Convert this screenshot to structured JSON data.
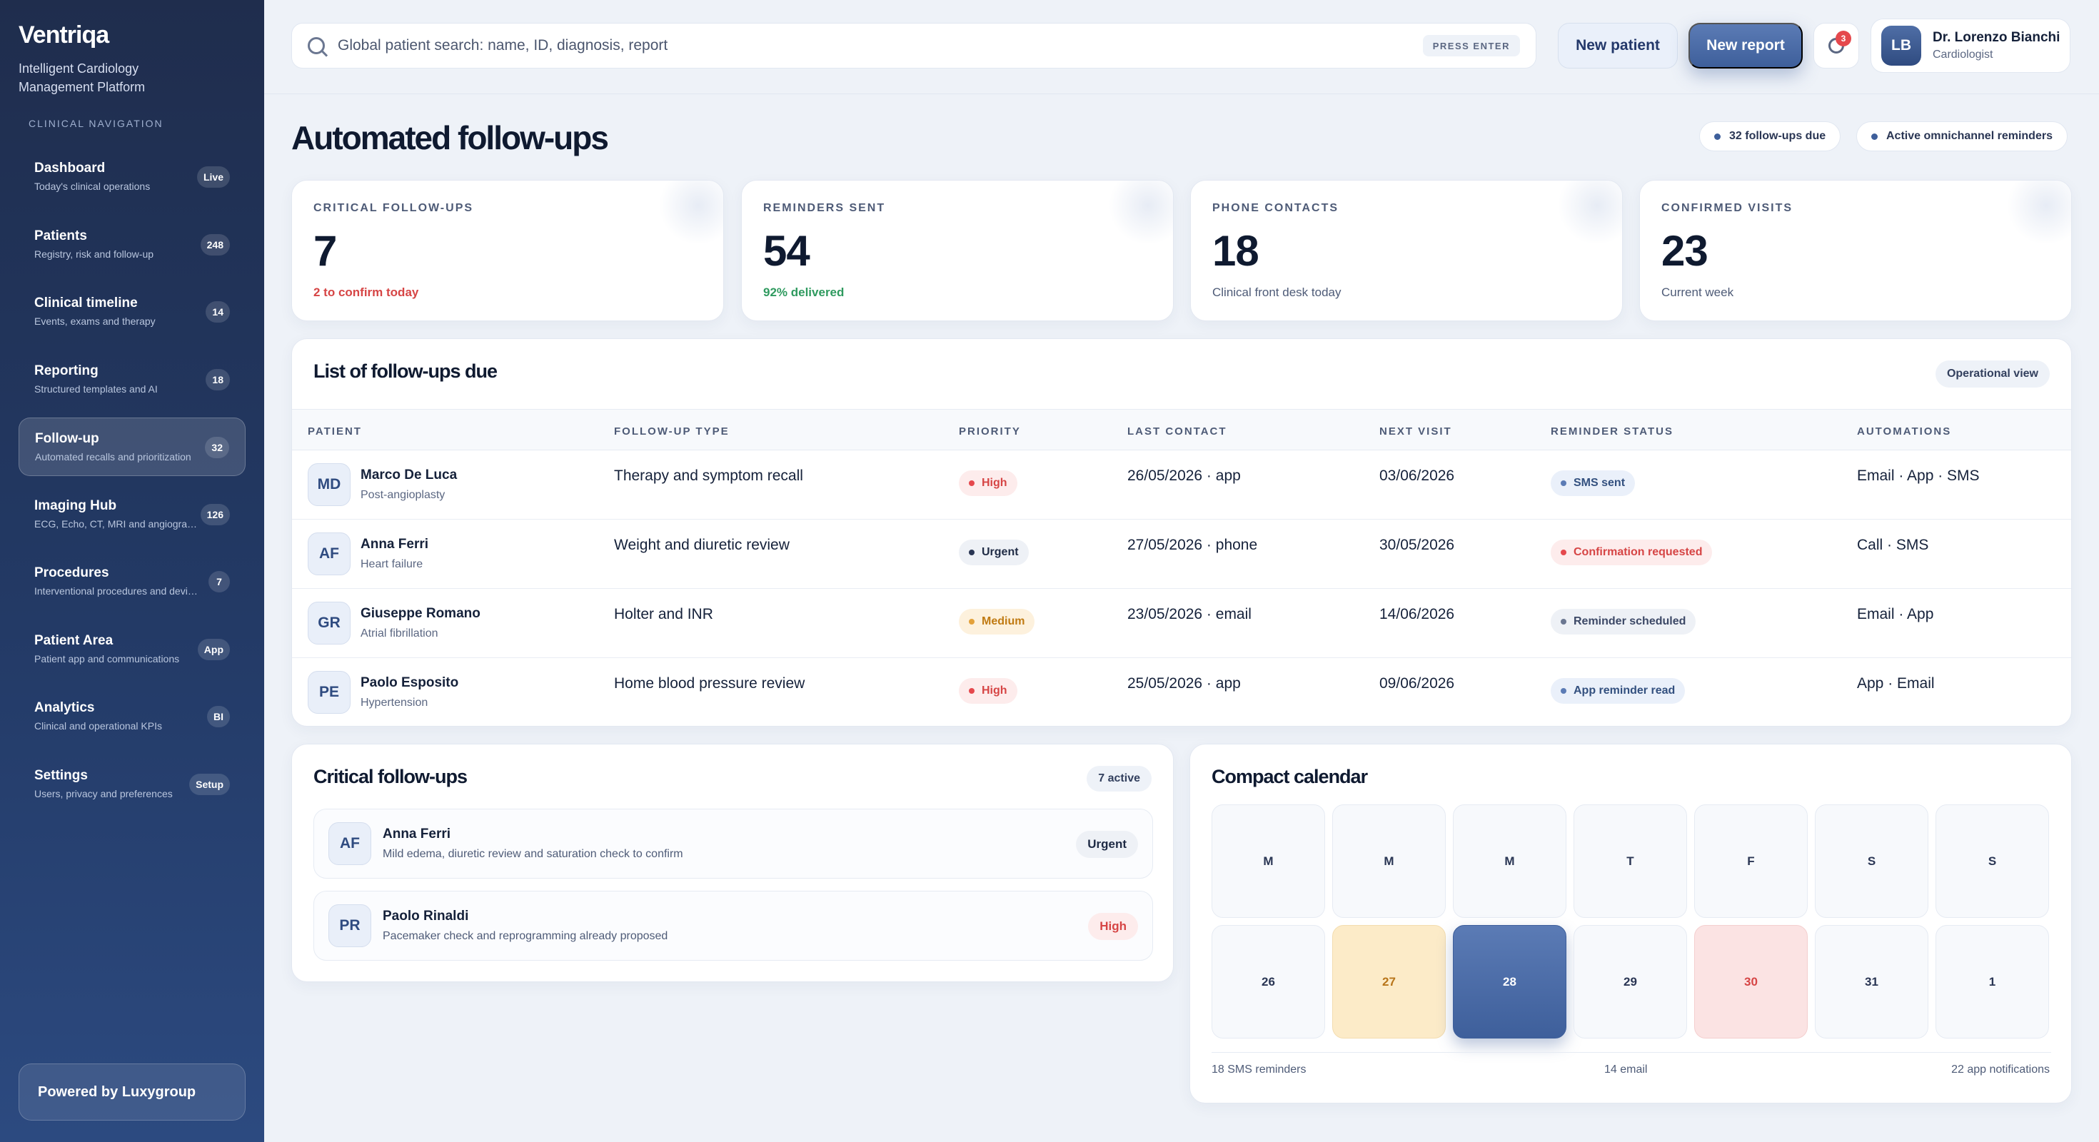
{
  "brand": {
    "name": "Ventriqa",
    "subtitle": "Intelligent Cardiology Management Platform",
    "nav_caption": "CLINICAL NAVIGATION",
    "powered": "Powered by Luxygroup"
  },
  "nav": [
    {
      "label": "Dashboard",
      "desc": "Today's clinical operations",
      "badge": "Live"
    },
    {
      "label": "Patients",
      "desc": "Registry, risk and follow-up",
      "badge": "248"
    },
    {
      "label": "Clinical timeline",
      "desc": "Events, exams and therapy",
      "badge": "14"
    },
    {
      "label": "Reporting",
      "desc": "Structured templates and AI",
      "badge": "18"
    },
    {
      "label": "Follow-up",
      "desc": "Automated recalls and prioritization",
      "badge": "32"
    },
    {
      "label": "Imaging Hub",
      "desc": "ECG, Echo, CT, MRI and angiography",
      "badge": "126"
    },
    {
      "label": "Procedures",
      "desc": "Interventional procedures and devices",
      "badge": "7"
    },
    {
      "label": "Patient Area",
      "desc": "Patient app and communications",
      "badge": "App"
    },
    {
      "label": "Analytics",
      "desc": "Clinical and operational KPIs",
      "badge": "BI"
    },
    {
      "label": "Settings",
      "desc": "Users, privacy and preferences",
      "badge": "Setup"
    }
  ],
  "topbar": {
    "search_placeholder": "Global patient search: name, ID, diagnosis, report",
    "search_hint": "PRESS ENTER",
    "new_patient": "New patient",
    "new_report": "New report",
    "notifications": "3",
    "user_initials": "LB",
    "user_name": "Dr. Lorenzo Bianchi",
    "user_role": "Cardiologist"
  },
  "page": {
    "title": "Automated follow-ups",
    "chip_due": "32 follow-ups due",
    "chip_active": "Active omnichannel reminders"
  },
  "kpis": [
    {
      "label": "CRITICAL FOLLOW-UPS",
      "value": "7",
      "note": "2 to confirm today"
    },
    {
      "label": "REMINDERS SENT",
      "value": "54",
      "note": "92% delivered"
    },
    {
      "label": "PHONE CONTACTS",
      "value": "18",
      "note": "Clinical front desk today"
    },
    {
      "label": "CONFIRMED VISITS",
      "value": "23",
      "note": "Current week"
    }
  ],
  "table": {
    "title": "List of follow-ups due",
    "view_tag": "Operational view",
    "headers": [
      "PATIENT",
      "FOLLOW-UP TYPE",
      "PRIORITY",
      "LAST CONTACT",
      "NEXT VISIT",
      "REMINDER STATUS",
      "AUTOMATIONS"
    ],
    "rows": [
      {
        "initials": "MD",
        "name": "Marco De Luca",
        "sub": "Post-angioplasty",
        "type": "Therapy and symptom recall",
        "priority": "High",
        "last": "26/05/2026 · app",
        "next": "03/06/2026",
        "status": "SMS sent",
        "auto": "Email · App · SMS"
      },
      {
        "initials": "AF",
        "name": "Anna Ferri",
        "sub": "Heart failure",
        "type": "Weight and diuretic review",
        "priority": "Urgent",
        "last": "27/05/2026 · phone",
        "next": "30/05/2026",
        "status": "Confirmation requested",
        "auto": "Call · SMS"
      },
      {
        "initials": "GR",
        "name": "Giuseppe Romano",
        "sub": "Atrial fibrillation",
        "type": "Holter and INR",
        "priority": "Medium",
        "last": "23/05/2026 · email",
        "next": "14/06/2026",
        "status": "Reminder scheduled",
        "auto": "Email · App"
      },
      {
        "initials": "PE",
        "name": "Paolo Esposito",
        "sub": "Hypertension",
        "type": "Home blood pressure review",
        "priority": "High",
        "last": "25/05/2026 · app",
        "next": "09/06/2026",
        "status": "App reminder read",
        "auto": "App · Email"
      }
    ]
  },
  "critical": {
    "title": "Critical follow-ups",
    "tag": "7 active",
    "items": [
      {
        "initials": "AF",
        "name": "Anna Ferri",
        "desc": "Mild edema, diuretic review and saturation check to confirm",
        "badge": "Urgent"
      },
      {
        "initials": "PR",
        "name": "Paolo Rinaldi",
        "desc": "Pacemaker check and reprogramming already proposed",
        "badge": "High"
      }
    ]
  },
  "calendar": {
    "title": "Compact calendar",
    "weekdays": [
      "M",
      "M",
      "M",
      "T",
      "F",
      "S",
      "S"
    ],
    "days": [
      "26",
      "27",
      "28",
      "29",
      "30",
      "31",
      "1"
    ],
    "foot_sms": "18 SMS reminders",
    "foot_email": "14 email",
    "foot_app": "22 app notifications"
  },
  "colors": {
    "accent": "#3e5f9b",
    "sidebar": "#233a66",
    "danger": "#d64545",
    "success": "#2f9a5f",
    "warning": "#c07a12"
  }
}
